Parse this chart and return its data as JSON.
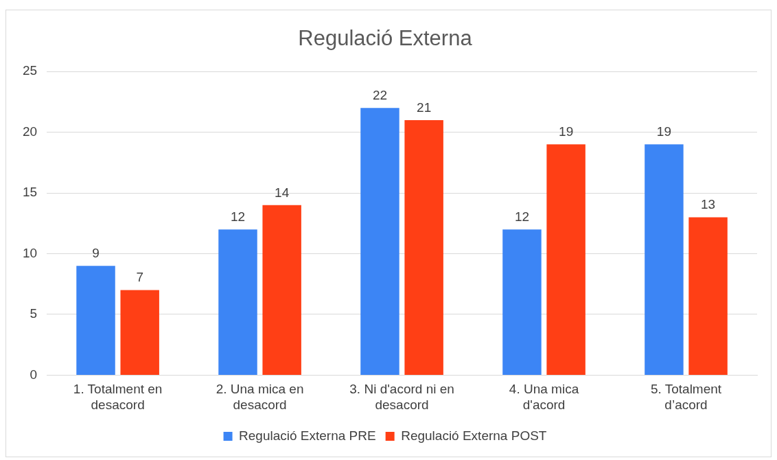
{
  "chart_data": {
    "type": "bar",
    "title": "Regulació Externa",
    "categories": [
      "1. Totalment en\ndesacord",
      "2. Una mica en\ndesacord",
      "3. Ni d'acord ni en\ndesacord",
      "4. Una mica\nd'acord",
      "5. Totalment\nd’acord"
    ],
    "series": [
      {
        "name": "Regulació Externa PRE",
        "color": "#3c85f5",
        "values": [
          9,
          12,
          22,
          12,
          19
        ]
      },
      {
        "name": "Regulació Externa POST",
        "color": "#ff3f15",
        "values": [
          7,
          14,
          21,
          19,
          13
        ]
      }
    ],
    "ylim": [
      0,
      25
    ],
    "yticks": [
      0,
      5,
      10,
      15,
      20,
      25
    ],
    "grid": "y",
    "legend": "bottom",
    "data_labels": true
  }
}
